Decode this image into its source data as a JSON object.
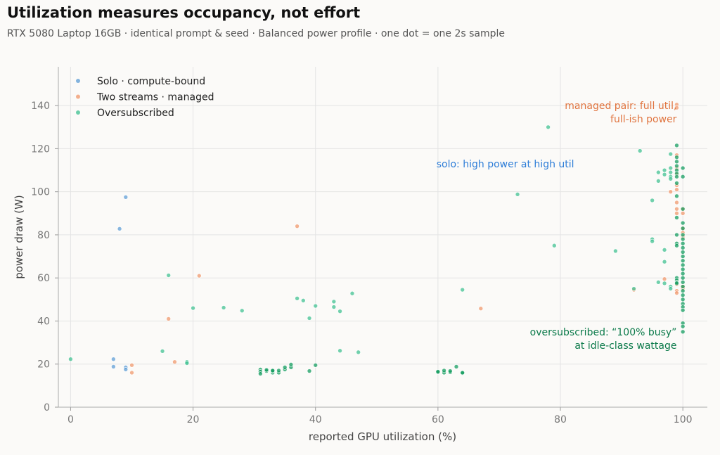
{
  "header": {
    "title": "Utilization measures occupancy, not effort",
    "subtitle": "RTX 5080 Laptop 16GB · identical prompt & seed · Balanced power profile · one dot = one 2s sample"
  },
  "colors": {
    "solo": "#5b9bd5",
    "managed": "#f0956a",
    "oversub": "#3bbf8f",
    "oversub_dense": "#0e9a5c",
    "annot_solo": "#2f7ed8",
    "annot_managed": "#e0743f",
    "annot_oversub": "#0b7a4a"
  },
  "chart_data": {
    "type": "scatter",
    "xlabel": "reported GPU utilization (%)",
    "ylabel": "power draw (W)",
    "xlim": [
      -2,
      104
    ],
    "ylim": [
      0,
      158
    ],
    "xticks": [
      0,
      20,
      40,
      60,
      80,
      100
    ],
    "yticks": [
      0,
      20,
      40,
      60,
      80,
      100,
      120,
      140
    ],
    "grid": true,
    "legend_position": "top-left",
    "series": [
      {
        "name": "Solo · compute-bound",
        "color": "#5b9bd5",
        "points": [
          [
            9,
            97.5
          ],
          [
            8,
            82.8
          ],
          [
            7,
            22.3
          ],
          [
            7,
            18.8
          ],
          [
            9,
            18.5
          ],
          [
            9,
            17.5
          ]
        ]
      },
      {
        "name": "Two streams · managed",
        "color": "#f0956a",
        "points": [
          [
            37,
            84
          ],
          [
            21,
            61
          ],
          [
            16,
            41
          ],
          [
            17,
            21
          ],
          [
            10,
            19.5
          ],
          [
            10,
            16
          ],
          [
            67,
            45.8
          ],
          [
            92,
            54.5
          ],
          [
            97,
            59.5
          ],
          [
            99,
            140.5
          ],
          [
            99,
            139
          ],
          [
            99,
            117
          ],
          [
            99,
            111
          ],
          [
            99,
            108
          ],
          [
            99,
            103
          ],
          [
            99,
            101
          ],
          [
            98,
            100
          ],
          [
            99,
            95
          ],
          [
            99,
            92
          ],
          [
            99,
            90
          ],
          [
            100,
            92
          ],
          [
            100,
            90
          ],
          [
            100,
            83
          ],
          [
            100,
            81
          ],
          [
            100,
            79
          ],
          [
            99,
            54
          ],
          [
            99,
            53
          ],
          [
            100,
            55
          ],
          [
            100,
            56
          ],
          [
            99,
            57
          ]
        ]
      },
      {
        "name": "Oversubscribed",
        "color": "#3bbf8f",
        "points": [
          [
            0,
            22.3
          ],
          [
            15,
            26
          ],
          [
            16,
            61.2
          ],
          [
            19,
            21
          ],
          [
            19,
            20.4
          ],
          [
            20,
            46
          ],
          [
            25,
            46.2
          ],
          [
            28,
            44.8
          ],
          [
            31,
            17.5
          ],
          [
            31,
            16.5
          ],
          [
            31,
            15.5
          ],
          [
            32,
            16.8
          ],
          [
            32,
            17.3
          ],
          [
            33,
            16
          ],
          [
            33,
            16.8
          ],
          [
            33,
            17
          ],
          [
            34,
            16
          ],
          [
            34,
            17
          ],
          [
            35,
            17.5
          ],
          [
            35,
            18.5
          ],
          [
            36,
            18.5
          ],
          [
            36,
            19.8
          ],
          [
            37,
            50.5
          ],
          [
            38,
            49.5
          ],
          [
            39,
            41.3
          ],
          [
            39,
            16.8
          ],
          [
            40,
            47
          ],
          [
            40,
            19.5
          ],
          [
            43,
            49
          ],
          [
            43,
            46.5
          ],
          [
            44,
            44.5
          ],
          [
            44,
            26.2
          ],
          [
            46,
            52.8
          ],
          [
            47,
            25.5
          ],
          [
            60,
            16.2
          ],
          [
            60,
            16.5
          ],
          [
            61,
            16
          ],
          [
            61,
            17
          ],
          [
            62,
            16.2
          ],
          [
            62,
            16.8
          ],
          [
            63,
            18.8
          ],
          [
            64,
            15.8
          ],
          [
            64,
            16
          ],
          [
            64,
            54.5
          ],
          [
            73,
            98.8
          ],
          [
            78,
            130
          ],
          [
            79,
            75
          ],
          [
            89,
            72.5
          ],
          [
            92,
            55
          ],
          [
            93,
            119
          ],
          [
            95,
            96
          ],
          [
            95,
            78
          ],
          [
            95,
            77
          ],
          [
            96,
            58
          ],
          [
            96,
            105
          ],
          [
            96,
            109
          ],
          [
            97,
            110
          ],
          [
            97,
            108
          ],
          [
            97,
            73
          ],
          [
            97,
            67.5
          ],
          [
            97,
            57.5
          ],
          [
            98,
            117.5
          ],
          [
            98,
            111
          ],
          [
            98,
            109
          ],
          [
            98,
            107
          ],
          [
            98,
            106
          ],
          [
            98,
            56
          ],
          [
            98,
            55
          ],
          [
            99,
            121.5
          ],
          [
            99,
            116
          ],
          [
            99,
            114
          ],
          [
            99,
            112
          ],
          [
            99,
            110
          ],
          [
            99,
            108.5
          ],
          [
            99,
            107
          ],
          [
            99,
            104
          ],
          [
            99,
            98
          ],
          [
            99,
            88
          ],
          [
            99,
            80
          ],
          [
            99,
            76
          ],
          [
            99,
            75
          ],
          [
            99,
            60
          ],
          [
            99,
            59
          ],
          [
            99,
            58
          ],
          [
            99,
            57.5
          ],
          [
            100,
            111
          ],
          [
            100,
            107
          ],
          [
            100,
            92
          ],
          [
            100,
            85.5
          ],
          [
            100,
            83
          ],
          [
            100,
            80
          ],
          [
            100,
            78
          ],
          [
            100,
            76
          ],
          [
            100,
            74
          ],
          [
            100,
            72
          ],
          [
            100,
            70
          ],
          [
            100,
            68
          ],
          [
            100,
            66
          ],
          [
            100,
            64
          ],
          [
            100,
            62
          ],
          [
            100,
            60
          ],
          [
            100,
            58
          ],
          [
            100,
            56
          ],
          [
            100,
            54
          ],
          [
            100,
            52
          ],
          [
            100,
            50
          ],
          [
            100,
            48
          ],
          [
            100,
            46.5
          ],
          [
            100,
            45
          ],
          [
            100,
            39
          ],
          [
            100,
            37.5
          ],
          [
            100,
            35
          ]
        ]
      }
    ],
    "annotations": [
      {
        "id": "solo",
        "lines": [
          "solo: high power at high util"
        ],
        "x": 71,
        "y": 113,
        "anchor": "middle",
        "color": "#2f7ed8"
      },
      {
        "id": "managed",
        "lines": [
          "managed pair: full util,",
          "full-ish power"
        ],
        "x": 99,
        "y": 140,
        "anchor": "end",
        "color": "#e0743f"
      },
      {
        "id": "oversub",
        "lines": [
          "oversubscribed: “100% busy”",
          "at idle-class wattage"
        ],
        "x": 99,
        "y": 35,
        "anchor": "end",
        "color": "#0b7a4a"
      }
    ]
  }
}
